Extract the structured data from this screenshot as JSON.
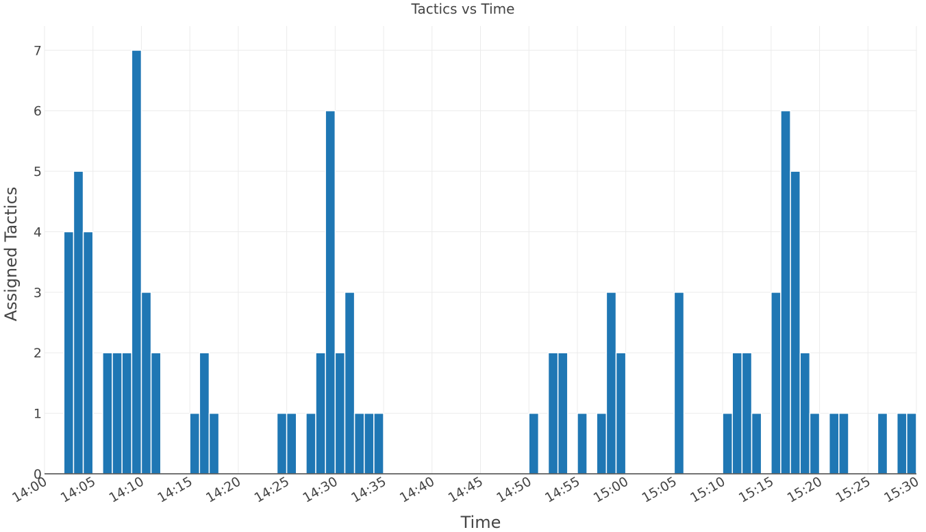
{
  "chart_data": {
    "type": "bar",
    "title": "Tactics vs Time",
    "xlabel": "Time",
    "ylabel": "Assigned Tactics",
    "xlim": [
      "14:00",
      "15:30"
    ],
    "ylim": [
      0,
      7.4
    ],
    "bin_minutes": 1,
    "x_ticks": [
      "14:00",
      "14:05",
      "14:10",
      "14:15",
      "14:20",
      "14:25",
      "14:30",
      "14:35",
      "14:40",
      "14:45",
      "14:50",
      "14:55",
      "15:00",
      "15:05",
      "15:10",
      "15:15",
      "15:20",
      "15:25",
      "15:30"
    ],
    "y_ticks": [
      0,
      1,
      2,
      3,
      4,
      5,
      6,
      7
    ],
    "grid": true,
    "bar_color": "#1f77b4",
    "x": [
      "14:02",
      "14:03",
      "14:04",
      "14:06",
      "14:07",
      "14:08",
      "14:09",
      "14:10",
      "14:11",
      "14:15",
      "14:16",
      "14:17",
      "14:24",
      "14:25",
      "14:27",
      "14:28",
      "14:29",
      "14:30",
      "14:31",
      "14:32",
      "14:33",
      "14:34",
      "14:50",
      "14:52",
      "14:53",
      "14:55",
      "14:57",
      "14:58",
      "14:59",
      "15:05",
      "15:10",
      "15:11",
      "15:12",
      "15:13",
      "15:15",
      "15:16",
      "15:17",
      "15:18",
      "15:19",
      "15:21",
      "15:22",
      "15:26",
      "15:28",
      "15:29"
    ],
    "values": [
      4,
      5,
      4,
      2,
      2,
      2,
      7,
      3,
      2,
      1,
      2,
      1,
      1,
      1,
      1,
      2,
      6,
      2,
      3,
      1,
      1,
      1,
      1,
      2,
      2,
      1,
      1,
      3,
      2,
      3,
      1,
      2,
      2,
      1,
      3,
      6,
      5,
      2,
      1,
      1,
      1,
      1,
      1,
      1
    ]
  }
}
